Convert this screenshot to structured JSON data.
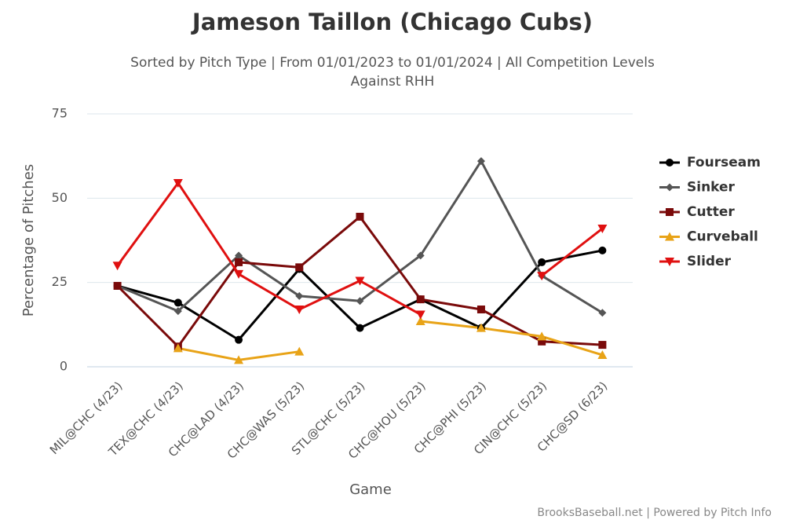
{
  "chart_data": {
    "type": "line",
    "title": "Jameson Taillon (Chicago Cubs)",
    "subtitle": "Sorted by Pitch Type | From 01/01/2023 to 01/01/2024 | All Competition Levels",
    "subtitle2": "Against RHH",
    "x_label": "Game",
    "y_label": "Percentage of Pitches",
    "credit": "BrooksBaseball.net | Powered by Pitch Info",
    "categories": [
      "MIL@CHC (4/23)",
      "TEX@CHC (4/23)",
      "CHC@LAD (4/23)",
      "CHC@WAS (5/23)",
      "STL@CHC (5/23)",
      "CHC@HOU (5/23)",
      "CHC@PHI (5/23)",
      "CIN@CHC (5/23)",
      "CHC@SD (6/23)"
    ],
    "series": [
      {
        "name": "Fourseam",
        "color": "#000000",
        "marker": "circle",
        "values": [
          24,
          19,
          8,
          29,
          11.5,
          20,
          11.5,
          31,
          34.5
        ]
      },
      {
        "name": "Sinker",
        "color": "#555555",
        "marker": "diamond",
        "values": [
          24,
          16.5,
          33,
          21,
          19.5,
          33,
          61,
          27,
          16
        ]
      },
      {
        "name": "Cutter",
        "color": "#7a0a0a",
        "marker": "square",
        "values": [
          24,
          6,
          31,
          29.5,
          44.5,
          20,
          17,
          7.5,
          6.5
        ]
      },
      {
        "name": "Curveball",
        "color": "#e8a317",
        "marker": "triangle",
        "values": [
          null,
          5.5,
          2,
          4.5,
          null,
          13.5,
          11.5,
          9,
          3.5
        ]
      },
      {
        "name": "Slider",
        "color": "#e01010",
        "marker": "triangle-down",
        "values": [
          30,
          54.5,
          27.5,
          17,
          25.5,
          15.5,
          null,
          27,
          41
        ]
      }
    ],
    "ylim": [
      0,
      75
    ],
    "yticks": [
      0,
      25,
      50,
      75
    ],
    "grid": true,
    "legend": "right"
  }
}
